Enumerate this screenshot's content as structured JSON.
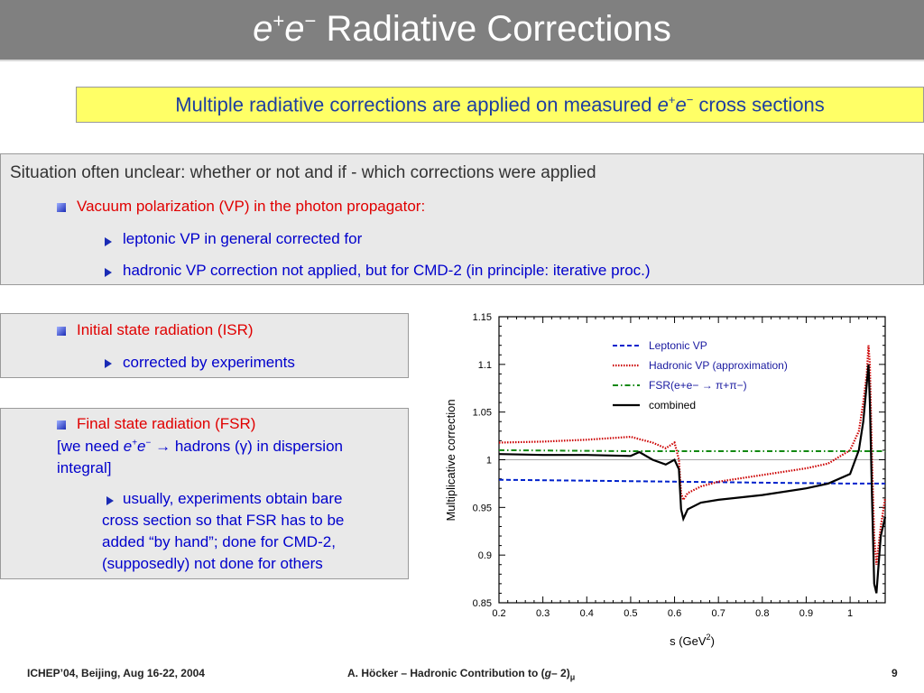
{
  "title": {
    "particle": "e",
    "sup1": "+",
    "particle2": "e",
    "sup2": "−",
    "text": "Radiative Corrections"
  },
  "subtitle": {
    "prefix": "Multiple radiative corrections are applied on measured",
    "e1": "e",
    "sup1": "+",
    "e2": "e",
    "sup2": "−",
    "suffix": "cross sections"
  },
  "box1": {
    "heading": "Situation often unclear: whether or not  and if - which corrections were applied",
    "item": "Vacuum polarization (VP) in the photon propagator:",
    "sub1": "leptonic VP in general corrected for",
    "sub2": "hadronic VP correction not applied, but for CMD-2 (in principle: iterative proc.)"
  },
  "box2": {
    "item": "Initial state radiation (ISR)",
    "sub": "corrected by experiments"
  },
  "box3": {
    "item": "Final state radiation (FSR)",
    "bracket_prefix": "[we need",
    "e1": "e",
    "sup1": "+",
    "e2": "e",
    "sup2": "−",
    "arrow": "→",
    "bracket_mid": "hadrons (",
    "gamma": "γ",
    "bracket_suffix": ") in dispersion",
    "bracket_line2": "integral]",
    "sub_lines": [
      "usually, experiments obtain bare",
      "cross section so that FSR has to be",
      "added “by hand”; done for CMD-2,",
      "(supposedly) not done for others"
    ]
  },
  "footer": {
    "left": "ICHEP’04, Beijing, Aug 16-22, 2004",
    "center": "A. Höcker – Hadronic Contribution to (",
    "center_g": "g",
    "center_mid": "– 2)",
    "center_sub": "μ",
    "page": "9"
  },
  "chart_data": {
    "type": "line",
    "xlabel": "s    (GeV",
    "xlabel_sup": "2",
    "xlabel_end": ")",
    "ylabel": "Multiplicative correction",
    "xlim": [
      0.2,
      1.08
    ],
    "ylim": [
      0.85,
      1.15
    ],
    "xticks": [
      "0.2",
      "0.3",
      "0.4",
      "0.5",
      "0.6",
      "0.7",
      "0.8",
      "0.9",
      "1"
    ],
    "yticks": [
      "0.85",
      "0.9",
      "0.95",
      "1",
      "1.05",
      "1.1",
      "1.15"
    ],
    "legend_position": "top-right",
    "series": [
      {
        "name": "Leptonic VP",
        "color": "#0022cc",
        "style": "dashed",
        "x": [
          0.2,
          0.4,
          0.6,
          0.8,
          1.0,
          1.08
        ],
        "y": [
          0.979,
          0.978,
          0.977,
          0.976,
          0.975,
          0.975
        ]
      },
      {
        "name": "Hadronic VP (approximation)",
        "color": "#cc0000",
        "style": "dotted",
        "x": [
          0.2,
          0.3,
          0.4,
          0.5,
          0.55,
          0.58,
          0.6,
          0.61,
          0.615,
          0.62,
          0.63,
          0.66,
          0.7,
          0.8,
          0.9,
          0.95,
          1.0,
          1.02,
          1.03,
          1.038,
          1.042,
          1.045,
          1.05,
          1.055,
          1.06,
          1.07,
          1.08
        ],
        "y": [
          1.018,
          1.019,
          1.021,
          1.024,
          1.018,
          1.012,
          1.018,
          1.0,
          0.965,
          0.958,
          0.965,
          0.972,
          0.977,
          0.984,
          0.991,
          0.996,
          1.01,
          1.03,
          1.06,
          1.09,
          1.12,
          1.1,
          1.0,
          0.92,
          0.89,
          0.93,
          0.96
        ]
      },
      {
        "name": "FSR(e+e− → π+π−)",
        "color": "#118811",
        "style": "dashdot",
        "x": [
          0.2,
          0.5,
          0.8,
          1.0,
          1.08
        ],
        "y": [
          1.01,
          1.009,
          1.009,
          1.009,
          1.009
        ]
      },
      {
        "name": "combined",
        "color": "#000000",
        "style": "solid",
        "x": [
          0.2,
          0.3,
          0.4,
          0.5,
          0.52,
          0.55,
          0.58,
          0.6,
          0.61,
          0.615,
          0.62,
          0.63,
          0.66,
          0.7,
          0.8,
          0.9,
          0.95,
          1.0,
          1.02,
          1.03,
          1.038,
          1.042,
          1.045,
          1.05,
          1.055,
          1.06,
          1.07,
          1.08
        ],
        "y": [
          1.006,
          1.005,
          1.005,
          1.004,
          1.008,
          1.0,
          0.995,
          1.0,
          0.99,
          0.948,
          0.938,
          0.948,
          0.955,
          0.958,
          0.963,
          0.97,
          0.975,
          0.985,
          1.01,
          1.04,
          1.08,
          1.1,
          1.06,
          0.96,
          0.87,
          0.86,
          0.92,
          0.94
        ]
      }
    ]
  }
}
